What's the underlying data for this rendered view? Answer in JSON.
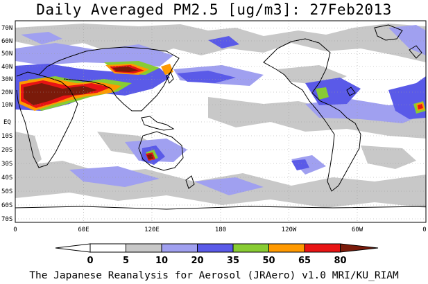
{
  "title": "Daily Averaged PM2.5 [ug/m3]: 27Feb2013",
  "footer": "The Japanese Reanalysis for Aerosol (JRAero) v1.0 MRI/KU_RIAM",
  "lat_labels": [
    "70N",
    "60N",
    "50N",
    "40N",
    "30N",
    "20N",
    "10N",
    "EQ",
    "10S",
    "20S",
    "30S",
    "40S",
    "50S",
    "60S",
    "70S"
  ],
  "lon_labels": [
    "0",
    "60E",
    "120E",
    "180",
    "120W",
    "60W",
    "0"
  ],
  "colorbar": {
    "ticks": [
      "0",
      "5",
      "10",
      "20",
      "35",
      "50",
      "65",
      "80"
    ],
    "colors": [
      "#ffffff",
      "#c8c8c8",
      "#a0a0f0",
      "#5a5ae8",
      "#88cc33",
      "#ff9900",
      "#e81414",
      "#7a1a0a"
    ]
  },
  "colors": {
    "land_outline": "#000000",
    "grid": "#999999"
  }
}
